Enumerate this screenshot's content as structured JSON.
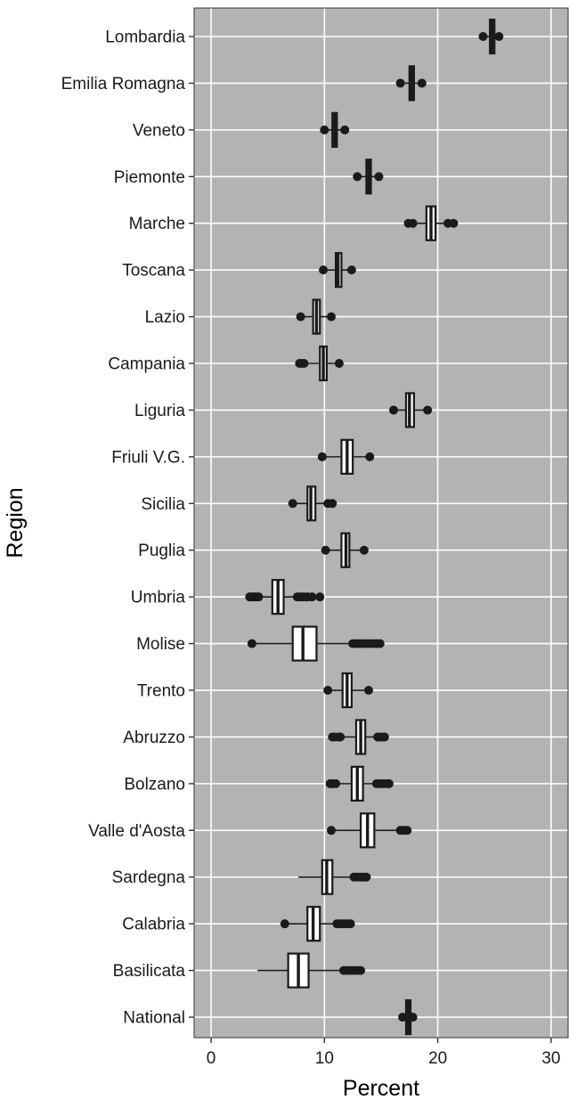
{
  "chart_data": {
    "type": "boxplot",
    "orientation": "horizontal",
    "xlabel": "Percent",
    "ylabel": "Region",
    "xlim": [
      -1.5,
      31.5
    ],
    "xticks": [
      0,
      10,
      20,
      30
    ],
    "grid": true,
    "colors": {
      "panel_background": "#b3b3b3",
      "gridline": "#ffffff",
      "box_fill": "#ffffff",
      "stroke": "#1a1a1a"
    },
    "categories": [
      "Lombardia",
      "Emilia Romagna",
      "Veneto",
      "Piemonte",
      "Marche",
      "Toscana",
      "Lazio",
      "Campania",
      "Liguria",
      "Friuli V.G.",
      "Sicilia",
      "Puglia",
      "Umbria",
      "Molise",
      "Trento",
      "Abruzzo",
      "Bolzano",
      "Valle d'Aosta",
      "Sardegna",
      "Calabria",
      "Basilicata",
      "National"
    ],
    "boxes": [
      {
        "region": "Lombardia",
        "q1": 24.6,
        "median": 24.8,
        "q3": 25.0,
        "whisker_low": 24.1,
        "whisker_high": 25.3,
        "outliers": [
          24.0,
          25.4
        ]
      },
      {
        "region": "Emilia Romagna",
        "q1": 17.5,
        "median": 17.7,
        "q3": 17.9,
        "whisker_low": 16.9,
        "whisker_high": 18.4,
        "outliers": [
          16.7,
          18.6
        ]
      },
      {
        "region": "Veneto",
        "q1": 10.7,
        "median": 10.9,
        "q3": 11.1,
        "whisker_low": 10.1,
        "whisker_high": 11.6,
        "outliers": [
          10.0,
          11.8
        ]
      },
      {
        "region": "Piemonte",
        "q1": 13.7,
        "median": 13.9,
        "q3": 14.1,
        "whisker_low": 13.1,
        "whisker_high": 14.6,
        "outliers": [
          12.9,
          14.8
        ]
      },
      {
        "region": "Marche",
        "q1": 19.0,
        "median": 19.4,
        "q3": 19.8,
        "whisker_low": 17.6,
        "whisker_high": 21.2,
        "outliers": [
          17.4,
          17.8,
          20.9,
          21.4
        ]
      },
      {
        "region": "Toscana",
        "q1": 11.0,
        "median": 11.2,
        "q3": 11.5,
        "whisker_low": 10.1,
        "whisker_high": 12.2,
        "outliers": [
          9.9,
          12.4
        ]
      },
      {
        "region": "Lazio",
        "q1": 9.0,
        "median": 9.3,
        "q3": 9.6,
        "whisker_low": 8.1,
        "whisker_high": 10.4,
        "outliers": [
          7.9,
          10.6
        ]
      },
      {
        "region": "Campania",
        "q1": 9.6,
        "median": 9.9,
        "q3": 10.2,
        "whisker_low": 8.2,
        "whisker_high": 11.1,
        "outliers": [
          7.8,
          8.0,
          8.2,
          11.3
        ]
      },
      {
        "region": "Liguria",
        "q1": 17.2,
        "median": 17.5,
        "q3": 17.9,
        "whisker_low": 16.3,
        "whisker_high": 18.8,
        "outliers": [
          16.1,
          19.1
        ]
      },
      {
        "region": "Friuli V.G.",
        "q1": 11.5,
        "median": 12.0,
        "q3": 12.5,
        "whisker_low": 10.0,
        "whisker_high": 13.8,
        "outliers": [
          9.8,
          14.0
        ]
      },
      {
        "region": "Sicilia",
        "q1": 8.5,
        "median": 8.8,
        "q3": 9.2,
        "whisker_low": 7.4,
        "whisker_high": 10.5,
        "outliers": [
          7.2,
          10.3,
          10.7
        ]
      },
      {
        "region": "Puglia",
        "q1": 11.5,
        "median": 11.9,
        "q3": 12.2,
        "whisker_low": 10.3,
        "whisker_high": 13.3,
        "outliers": [
          10.1,
          13.5
        ]
      },
      {
        "region": "Umbria",
        "q1": 5.4,
        "median": 5.9,
        "q3": 6.4,
        "whisker_low": 4.0,
        "whisker_high": 7.7,
        "outliers": [
          3.4,
          3.6,
          3.8,
          4.0,
          4.2,
          7.6,
          7.9,
          8.2,
          8.5,
          8.9,
          9.6
        ]
      },
      {
        "region": "Molise",
        "q1": 7.2,
        "median": 8.1,
        "q3": 9.3,
        "whisker_low": 3.6,
        "whisker_high": 12.5,
        "outliers": [
          3.6,
          12.5,
          12.8,
          13.1,
          13.4,
          13.7,
          14.0,
          14.3,
          14.6,
          14.9
        ]
      },
      {
        "region": "Trento",
        "q1": 11.6,
        "median": 12.0,
        "q3": 12.4,
        "whisker_low": 10.5,
        "whisker_high": 13.7,
        "outliers": [
          10.3,
          13.9
        ]
      },
      {
        "region": "Abruzzo",
        "q1": 12.8,
        "median": 13.2,
        "q3": 13.6,
        "whisker_low": 11.1,
        "whisker_high": 14.8,
        "outliers": [
          10.7,
          10.9,
          11.2,
          11.4,
          14.7,
          14.9,
          15.1,
          15.3
        ]
      },
      {
        "region": "Bolzano",
        "q1": 12.4,
        "median": 12.9,
        "q3": 13.4,
        "whisker_low": 10.9,
        "whisker_high": 14.7,
        "outliers": [
          10.5,
          10.7,
          11.0,
          14.6,
          14.9,
          15.2,
          15.5,
          15.7
        ]
      },
      {
        "region": "Valle d'Aosta",
        "q1": 13.2,
        "median": 13.8,
        "q3": 14.4,
        "whisker_low": 10.7,
        "whisker_high": 16.5,
        "outliers": [
          10.6,
          16.7,
          17.0,
          17.3
        ]
      },
      {
        "region": "Sardegna",
        "q1": 9.8,
        "median": 10.2,
        "q3": 10.7,
        "whisker_low": 7.7,
        "whisker_high": 12.4,
        "outliers": [
          12.6,
          12.9,
          13.2,
          13.5,
          13.7
        ]
      },
      {
        "region": "Calabria",
        "q1": 8.5,
        "median": 9.0,
        "q3": 9.6,
        "whisker_low": 6.5,
        "whisker_high": 11.0,
        "outliers": [
          6.5,
          11.1,
          11.4,
          11.7,
          12.0,
          12.3
        ]
      },
      {
        "region": "Basilicata",
        "q1": 6.8,
        "median": 7.7,
        "q3": 8.6,
        "whisker_low": 4.1,
        "whisker_high": 11.5,
        "outliers": [
          11.7,
          12.0,
          12.3,
          12.6,
          12.9,
          13.2
        ]
      },
      {
        "region": "National",
        "q1": 17.3,
        "median": 17.4,
        "q3": 17.5,
        "whisker_low": 17.1,
        "whisker_high": 17.7,
        "outliers": [
          16.9,
          17.8
        ]
      }
    ]
  }
}
